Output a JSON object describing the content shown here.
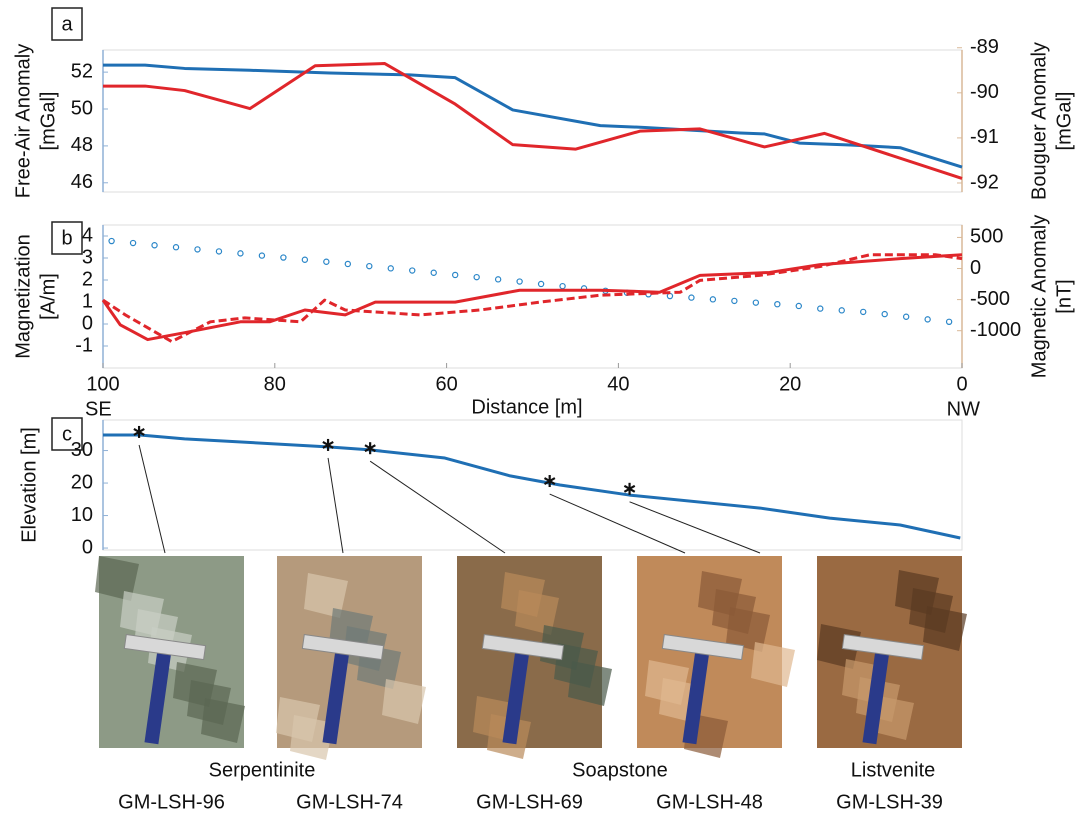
{
  "chart_data": [
    {
      "type": "line",
      "panel_label": "a",
      "ylabel": [
        "Free-Air Anomaly",
        "[mGal]"
      ],
      "y2label": [
        "Bouguer Anomaly",
        "[mGal]"
      ],
      "xlim": [
        100,
        0
      ],
      "ylim": [
        45.5,
        53.2
      ],
      "yticks": [
        46,
        48,
        50,
        52
      ],
      "y2lim": [
        -92.2,
        -89.05
      ],
      "y2ticks": [
        -92,
        -91,
        -90,
        -89
      ],
      "series": [
        {
          "color": "#1f6fb4",
          "x": [
            100,
            95.1,
            90.5,
            82.9,
            73.6,
            64.3,
            59,
            52.3,
            42.1,
            36.9,
            25.8,
            23,
            18.9,
            13,
            7.2,
            0
          ],
          "values": [
            52.38,
            52.38,
            52.2,
            52.1,
            51.95,
            51.85,
            51.7,
            49.95,
            49.1,
            49,
            48.7,
            48.65,
            48.15,
            48.05,
            47.9,
            46.85
          ]
        },
        {
          "color": "#e0262b",
          "axis": "y2",
          "x": [
            100,
            95.1,
            90.5,
            82.9,
            75.3,
            67.2,
            59,
            52.3,
            45,
            37.5,
            30.5,
            23,
            16,
            0
          ],
          "values": [
            -89.85,
            -89.85,
            -89.95,
            -90.35,
            -89.4,
            -89.35,
            -90.25,
            -91.15,
            -91.25,
            -90.85,
            -90.8,
            -91.2,
            -90.9,
            -91.9
          ]
        }
      ]
    },
    {
      "type": "line",
      "panel_label": "b",
      "ylabel": [
        "Magnetization",
        "[A/m]"
      ],
      "y2label": [
        "Magnetic Anomaly",
        "[nT]"
      ],
      "xlabel": "Distance [m]",
      "x_end_labels": [
        "SE",
        "NW"
      ],
      "xlim": [
        100,
        0
      ],
      "xticks": [
        100,
        80,
        60,
        40,
        20,
        0
      ],
      "ylim": [
        -2,
        4.5
      ],
      "yticks": [
        -1,
        0,
        1,
        2,
        3,
        4
      ],
      "y2lim": [
        -1600,
        700
      ],
      "y2ticks": [
        -1000,
        -500,
        0,
        500
      ],
      "series": [
        {
          "color": "#2a86c8",
          "mode": "markers",
          "x": [
            99,
            96.5,
            94,
            91.5,
            89,
            86.5,
            84,
            81.5,
            79,
            76.5,
            74,
            71.5,
            69,
            66.5,
            64,
            61.5,
            59,
            56.5,
            54,
            51.5,
            49,
            46.5,
            44,
            41.5,
            39,
            36.5,
            34,
            31.5,
            29,
            26.5,
            24,
            21.5,
            19,
            16.5,
            14,
            11.5,
            9,
            6.5,
            4,
            1.5
          ],
          "values": [
            3.77,
            3.68,
            3.58,
            3.49,
            3.39,
            3.3,
            3.21,
            3.11,
            3.02,
            2.92,
            2.83,
            2.73,
            2.63,
            2.53,
            2.43,
            2.33,
            2.23,
            2.13,
            2.03,
            1.93,
            1.82,
            1.72,
            1.62,
            1.51,
            1.42,
            1.35,
            1.27,
            1.2,
            1.12,
            1.05,
            0.97,
            0.9,
            0.82,
            0.7,
            0.62,
            0.55,
            0.45,
            0.33,
            0.21,
            0.1
          ]
        },
        {
          "color": "#e0262b",
          "axis": "y2",
          "x": [
            100,
            98,
            94.8,
            90.5,
            84,
            80.6,
            76.5,
            71.8,
            68.3,
            59,
            51.5,
            42.1,
            35.2,
            30.5,
            22.4,
            16.5,
            7.2,
            0
          ],
          "values": [
            -508,
            -905,
            -1143,
            -1032,
            -857,
            -857,
            -667,
            -746,
            -540,
            -540,
            -349,
            -349,
            -381,
            -111,
            -63,
            63,
            159,
            222
          ]
        },
        {
          "color": "#e0262b",
          "axis": "y2",
          "dash": true,
          "x": [
            100,
            97.4,
            92,
            87.5,
            83.5,
            77,
            74.2,
            71.8,
            63.1,
            56.1,
            49.1,
            42.1,
            32.8,
            30.5,
            23.6,
            16.5,
            10.7,
            3.1,
            0
          ],
          "values": [
            -508,
            -746,
            -1175,
            -857,
            -794,
            -857,
            -508,
            -667,
            -746,
            -667,
            -540,
            -429,
            -381,
            -190,
            -111,
            32,
            222,
            222,
            159
          ]
        }
      ]
    },
    {
      "type": "line",
      "panel_label": "c",
      "ylabel": [
        "Elevation [m]"
      ],
      "xlim": [
        100,
        0
      ],
      "ylim": [
        -0.6,
        39.4
      ],
      "yticks": [
        0,
        10,
        20,
        30
      ],
      "series": [
        {
          "color": "#1f6fb4",
          "x": [
            100,
            95.7,
            90.5,
            73.6,
            68.9,
            60.2,
            52.6,
            46.8,
            38.7,
            23.5,
            15.4,
            7.2,
            0.2
          ],
          "values": [
            34.8,
            34.8,
            33.6,
            31.1,
            30.2,
            27.7,
            22.2,
            19.4,
            16.3,
            12.3,
            9.2,
            7.1,
            3.1
          ]
        }
      ],
      "samples": {
        "x": [
          95.8,
          73.8,
          68.9,
          48,
          38.7
        ],
        "values": [
          34.8,
          30.8,
          29.8,
          19.7,
          17.3
        ]
      }
    }
  ],
  "photos": {
    "rock_types": [
      "Serpentinite",
      "Soapstone",
      "Listvenite"
    ],
    "samples": [
      "GM-LSH-96",
      "GM-LSH-74",
      "GM-LSH-69",
      "GM-LSH-48",
      "GM-LSH-39"
    ]
  }
}
